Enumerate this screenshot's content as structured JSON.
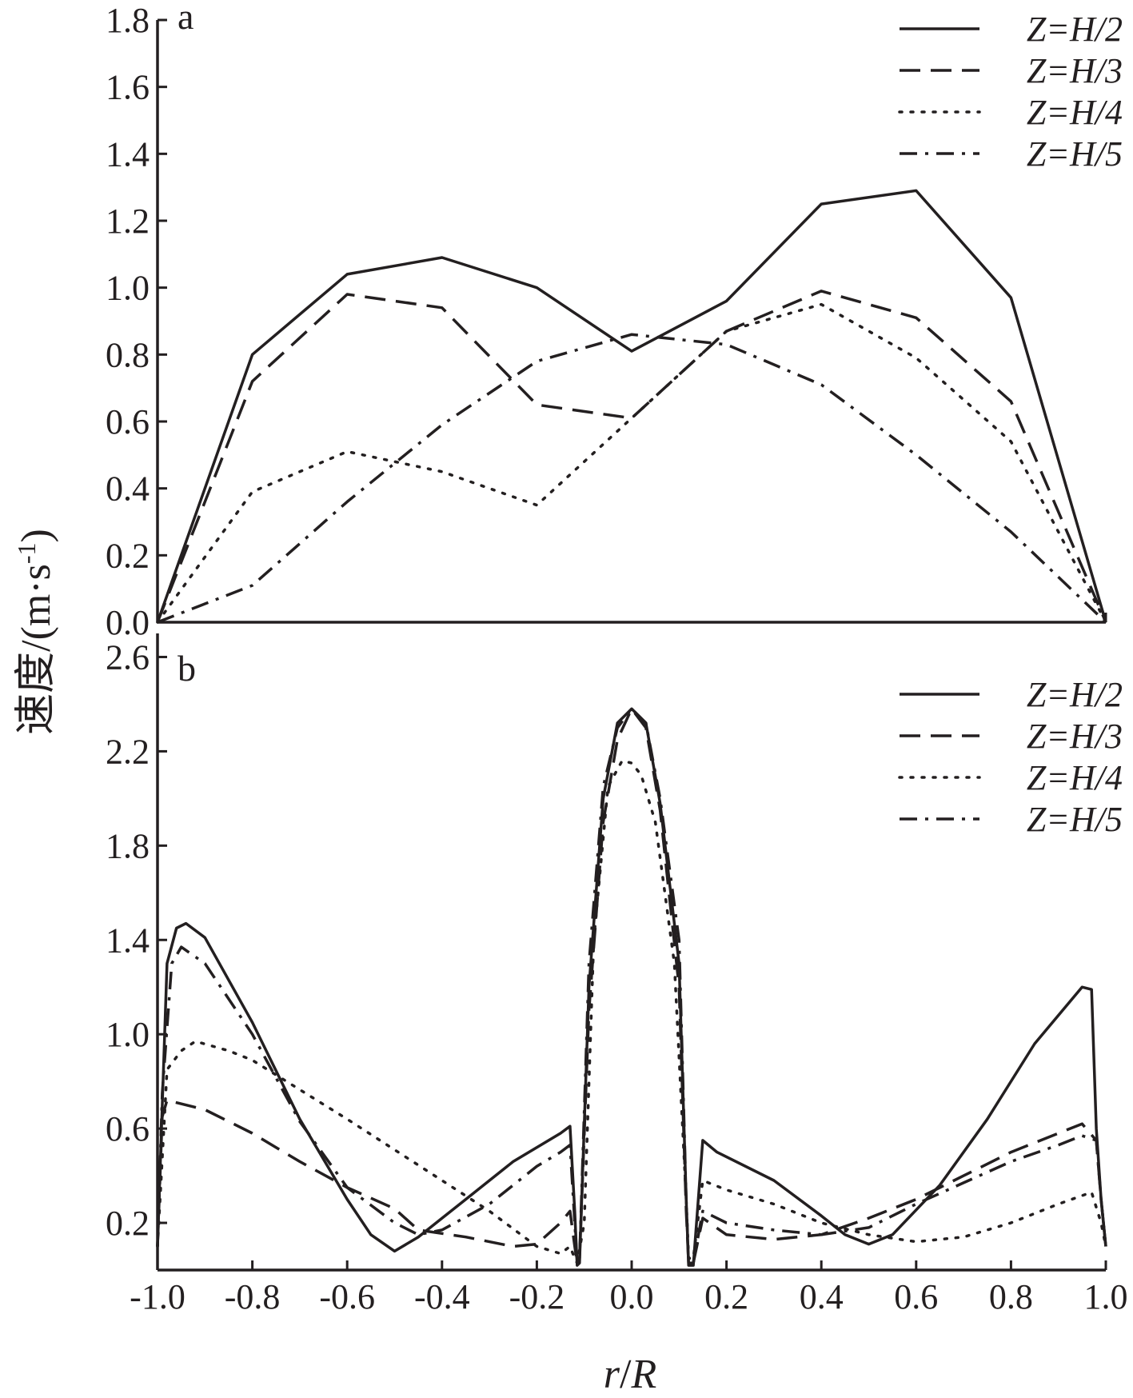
{
  "shared": {
    "ylabel_main": "速度/(m·s",
    "ylabel_sup": "-1",
    "ylabel_close": ")",
    "xlabel_r": "r",
    "xlabel_slash": "/",
    "xlabel_R": "R",
    "xlim": [
      -1.0,
      1.0
    ],
    "xticks": [
      "-1.0",
      "-0.8",
      "-0.6",
      "-0.4",
      "-0.2",
      "0.0",
      "0.2",
      "0.4",
      "0.6",
      "0.8",
      "1.0"
    ],
    "legend_placement": "top-right",
    "grid": false
  },
  "chart_data": [
    {
      "type": "line",
      "panel": "a",
      "ylim": [
        0,
        1.8
      ],
      "yticks": [
        "0.0",
        "0.2",
        "0.4",
        "0.6",
        "0.8",
        "1.0",
        "1.2",
        "1.4",
        "1.6",
        "1.8"
      ],
      "series": [
        {
          "name": "Z=H/2",
          "style": "solid",
          "points": [
            [
              -1.0,
              0.0
            ],
            [
              -0.8,
              0.8
            ],
            [
              -0.6,
              1.04
            ],
            [
              -0.4,
              1.09
            ],
            [
              -0.2,
              1.0
            ],
            [
              0.0,
              0.81
            ],
            [
              0.2,
              0.96
            ],
            [
              0.4,
              1.25
            ],
            [
              0.6,
              1.29
            ],
            [
              0.8,
              0.97
            ],
            [
              1.0,
              0.0
            ]
          ]
        },
        {
          "name": "Z=H/3",
          "style": "dashed",
          "points": [
            [
              -1.0,
              0.0
            ],
            [
              -0.8,
              0.72
            ],
            [
              -0.6,
              0.98
            ],
            [
              -0.4,
              0.94
            ],
            [
              -0.2,
              0.65
            ],
            [
              0.0,
              0.61
            ],
            [
              0.2,
              0.87
            ],
            [
              0.4,
              0.99
            ],
            [
              0.6,
              0.91
            ],
            [
              0.8,
              0.66
            ],
            [
              1.0,
              0.0
            ]
          ]
        },
        {
          "name": "Z=H/4",
          "style": "dotted",
          "points": [
            [
              -1.0,
              0.0
            ],
            [
              -0.8,
              0.39
            ],
            [
              -0.6,
              0.51
            ],
            [
              -0.4,
              0.45
            ],
            [
              -0.2,
              0.35
            ],
            [
              0.0,
              0.61
            ],
            [
              0.2,
              0.87
            ],
            [
              0.4,
              0.95
            ],
            [
              0.6,
              0.79
            ],
            [
              0.8,
              0.54
            ],
            [
              1.0,
              0.0
            ]
          ]
        },
        {
          "name": "Z=H/5",
          "style": "dashdot",
          "points": [
            [
              -1.0,
              0.0
            ],
            [
              -0.8,
              0.11
            ],
            [
              -0.6,
              0.36
            ],
            [
              -0.4,
              0.59
            ],
            [
              -0.2,
              0.78
            ],
            [
              0.0,
              0.86
            ],
            [
              0.2,
              0.83
            ],
            [
              0.4,
              0.71
            ],
            [
              0.6,
              0.5
            ],
            [
              0.8,
              0.27
            ],
            [
              1.0,
              0.0
            ]
          ]
        }
      ]
    },
    {
      "type": "line",
      "panel": "b",
      "ylim": [
        0.0,
        2.7
      ],
      "yticks": [
        "0.2",
        "0.6",
        "1.0",
        "1.4",
        "1.8",
        "2.2",
        "2.6"
      ],
      "series": [
        {
          "name": "Z=H/2",
          "style": "solid",
          "points": [
            [
              -1.0,
              0.1
            ],
            [
              -0.98,
              1.3
            ],
            [
              -0.96,
              1.45
            ],
            [
              -0.94,
              1.47
            ],
            [
              -0.9,
              1.41
            ],
            [
              -0.8,
              1.05
            ],
            [
              -0.7,
              0.64
            ],
            [
              -0.6,
              0.3
            ],
            [
              -0.55,
              0.15
            ],
            [
              -0.5,
              0.08
            ],
            [
              -0.45,
              0.14
            ],
            [
              -0.35,
              0.3
            ],
            [
              -0.25,
              0.46
            ],
            [
              -0.15,
              0.58
            ],
            [
              -0.13,
              0.61
            ],
            [
              -0.12,
              0.25
            ],
            [
              -0.115,
              0.02
            ],
            [
              -0.11,
              0.03
            ],
            [
              -0.09,
              1.2
            ],
            [
              -0.06,
              2.0
            ],
            [
              -0.03,
              2.32
            ],
            [
              0.0,
              2.38
            ],
            [
              0.03,
              2.32
            ],
            [
              0.06,
              1.98
            ],
            [
              0.1,
              1.3
            ],
            [
              0.115,
              0.3
            ],
            [
              0.12,
              0.02
            ],
            [
              0.13,
              0.02
            ],
            [
              0.15,
              0.55
            ],
            [
              0.18,
              0.5
            ],
            [
              0.3,
              0.38
            ],
            [
              0.4,
              0.23
            ],
            [
              0.45,
              0.15
            ],
            [
              0.5,
              0.11
            ],
            [
              0.55,
              0.15
            ],
            [
              0.65,
              0.36
            ],
            [
              0.75,
              0.64
            ],
            [
              0.85,
              0.96
            ],
            [
              0.95,
              1.2
            ],
            [
              0.97,
              1.19
            ],
            [
              0.98,
              0.6
            ],
            [
              0.99,
              0.3
            ],
            [
              1.0,
              0.1
            ]
          ]
        },
        {
          "name": "Z=H/3",
          "style": "dashed",
          "points": [
            [
              -1.0,
              0.1
            ],
            [
              -0.99,
              0.65
            ],
            [
              -0.98,
              0.72
            ],
            [
              -0.9,
              0.68
            ],
            [
              -0.8,
              0.58
            ],
            [
              -0.7,
              0.46
            ],
            [
              -0.6,
              0.35
            ],
            [
              -0.5,
              0.26
            ],
            [
              -0.45,
              0.17
            ],
            [
              -0.35,
              0.14
            ],
            [
              -0.25,
              0.1
            ],
            [
              -0.2,
              0.11
            ],
            [
              -0.15,
              0.2
            ],
            [
              -0.13,
              0.25
            ],
            [
              -0.12,
              0.1
            ],
            [
              -0.115,
              0.03
            ],
            [
              -0.11,
              0.05
            ],
            [
              -0.09,
              1.1
            ],
            [
              -0.06,
              1.9
            ],
            [
              -0.03,
              2.25
            ],
            [
              0.0,
              2.38
            ],
            [
              0.03,
              2.3
            ],
            [
              0.06,
              1.95
            ],
            [
              0.1,
              1.2
            ],
            [
              0.115,
              0.25
            ],
            [
              0.12,
              0.03
            ],
            [
              0.13,
              0.03
            ],
            [
              0.15,
              0.22
            ],
            [
              0.2,
              0.15
            ],
            [
              0.3,
              0.13
            ],
            [
              0.4,
              0.15
            ],
            [
              0.5,
              0.22
            ],
            [
              0.6,
              0.3
            ],
            [
              0.7,
              0.4
            ],
            [
              0.8,
              0.5
            ],
            [
              0.9,
              0.58
            ],
            [
              0.95,
              0.62
            ],
            [
              0.98,
              0.55
            ],
            [
              0.99,
              0.3
            ],
            [
              1.0,
              0.1
            ]
          ]
        },
        {
          "name": "Z=H/4",
          "style": "dotted",
          "points": [
            [
              -1.0,
              0.1
            ],
            [
              -0.98,
              0.85
            ],
            [
              -0.95,
              0.93
            ],
            [
              -0.92,
              0.97
            ],
            [
              -0.85,
              0.93
            ],
            [
              -0.8,
              0.89
            ],
            [
              -0.6,
              0.64
            ],
            [
              -0.4,
              0.38
            ],
            [
              -0.3,
              0.25
            ],
            [
              -0.2,
              0.1
            ],
            [
              -0.15,
              0.07
            ],
            [
              -0.13,
              0.1
            ],
            [
              -0.12,
              0.05
            ],
            [
              -0.115,
              0.03
            ],
            [
              -0.1,
              0.2
            ],
            [
              -0.08,
              1.4
            ],
            [
              -0.05,
              2.05
            ],
            [
              -0.02,
              2.16
            ],
            [
              0.0,
              2.15
            ],
            [
              0.02,
              2.1
            ],
            [
              0.05,
              1.9
            ],
            [
              0.09,
              1.3
            ],
            [
              0.115,
              0.3
            ],
            [
              0.12,
              0.05
            ],
            [
              0.13,
              0.05
            ],
            [
              0.15,
              0.38
            ],
            [
              0.2,
              0.34
            ],
            [
              0.3,
              0.28
            ],
            [
              0.4,
              0.2
            ],
            [
              0.5,
              0.15
            ],
            [
              0.6,
              0.12
            ],
            [
              0.7,
              0.14
            ],
            [
              0.8,
              0.2
            ],
            [
              0.9,
              0.28
            ],
            [
              0.97,
              0.33
            ],
            [
              0.99,
              0.2
            ],
            [
              1.0,
              0.1
            ]
          ]
        },
        {
          "name": "Z=H/5",
          "style": "dashdot",
          "points": [
            [
              -1.0,
              0.1
            ],
            [
              -0.99,
              0.75
            ],
            [
              -0.97,
              1.3
            ],
            [
              -0.95,
              1.37
            ],
            [
              -0.9,
              1.3
            ],
            [
              -0.8,
              1.0
            ],
            [
              -0.7,
              0.63
            ],
            [
              -0.6,
              0.35
            ],
            [
              -0.5,
              0.2
            ],
            [
              -0.45,
              0.15
            ],
            [
              -0.4,
              0.17
            ],
            [
              -0.3,
              0.28
            ],
            [
              -0.2,
              0.44
            ],
            [
              -0.15,
              0.5
            ],
            [
              -0.13,
              0.53
            ],
            [
              -0.12,
              0.2
            ],
            [
              -0.115,
              0.03
            ],
            [
              -0.11,
              0.05
            ],
            [
              -0.09,
              1.3
            ],
            [
              -0.06,
              2.05
            ],
            [
              -0.03,
              2.3
            ],
            [
              0.0,
              2.38
            ],
            [
              0.03,
              2.32
            ],
            [
              0.06,
              2.0
            ],
            [
              0.1,
              1.4
            ],
            [
              0.115,
              0.3
            ],
            [
              0.12,
              0.03
            ],
            [
              0.13,
              0.03
            ],
            [
              0.15,
              0.25
            ],
            [
              0.2,
              0.2
            ],
            [
              0.3,
              0.17
            ],
            [
              0.4,
              0.15
            ],
            [
              0.5,
              0.18
            ],
            [
              0.6,
              0.28
            ],
            [
              0.7,
              0.37
            ],
            [
              0.8,
              0.46
            ],
            [
              0.9,
              0.53
            ],
            [
              0.95,
              0.57
            ],
            [
              0.98,
              0.55
            ],
            [
              0.99,
              0.3
            ],
            [
              1.0,
              0.1
            ]
          ]
        }
      ]
    }
  ]
}
